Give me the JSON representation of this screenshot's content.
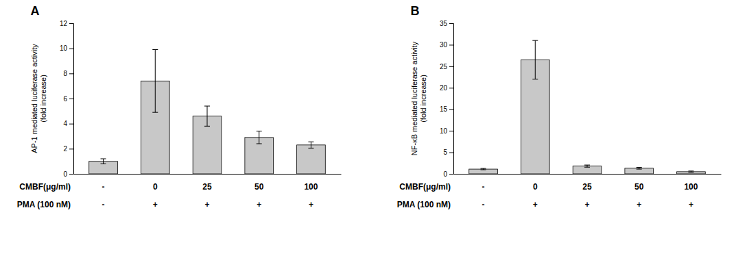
{
  "chart_data": [
    {
      "type": "bar",
      "title": "A",
      "ylabel": "AP-1 mediated luciferase activity\n(fold increase)",
      "categories": [
        "-",
        "0",
        "25",
        "50",
        "100"
      ],
      "values": [
        1.0,
        7.4,
        4.6,
        2.9,
        2.3
      ],
      "errors": [
        0.2,
        2.5,
        0.8,
        0.5,
        0.25
      ],
      "color": "#c8c8c8",
      "ylim": [
        0,
        12
      ],
      "yticks": [
        0,
        2,
        4,
        6,
        8,
        10,
        12
      ],
      "grid": false,
      "annotations": [
        {
          "text": "CMBF(μg/ml)"
        },
        {
          "text": "PMA (100 nM)",
          "labels": [
            "-",
            "+",
            "+",
            "+",
            "+"
          ]
        }
      ]
    },
    {
      "type": "bar",
      "title": "B",
      "ylabel": "NF-κB mediated luciferase activity\n(fold increase)",
      "categories": [
        "-",
        "0",
        "25",
        "50",
        "100"
      ],
      "values": [
        1.1,
        26.5,
        1.8,
        1.3,
        0.5
      ],
      "errors": [
        0.15,
        4.5,
        0.25,
        0.2,
        0.15
      ],
      "color": "#c8c8c8",
      "ylim": [
        0,
        35
      ],
      "yticks": [
        0,
        5,
        10,
        15,
        20,
        25,
        30,
        35
      ],
      "grid": false,
      "annotations": [
        {
          "text": "CMBF(μg/ml)"
        },
        {
          "text": "PMA (100 nM)",
          "labels": [
            "-",
            "+",
            "+",
            "+",
            "+"
          ]
        }
      ]
    }
  ]
}
